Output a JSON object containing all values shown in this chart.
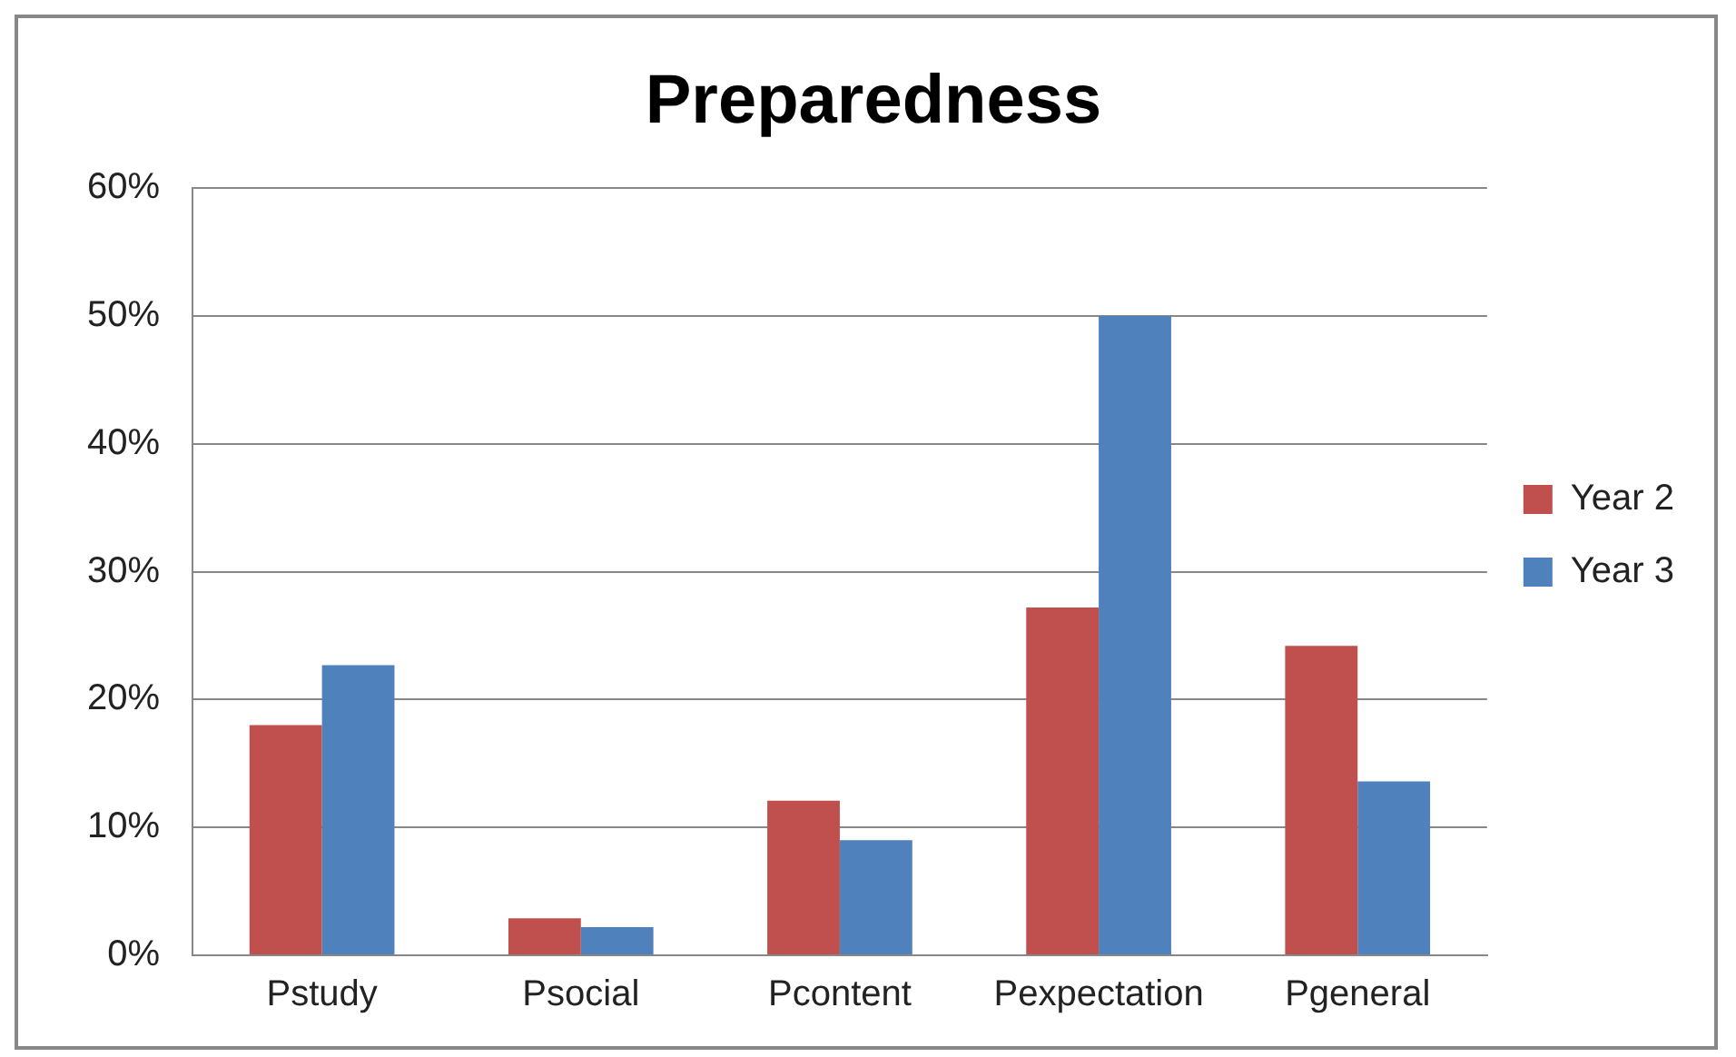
{
  "chart_data": {
    "type": "bar",
    "title": "Preparedness",
    "categories": [
      "Pstudy",
      "Psocial",
      "Pcontent",
      "Pexpectation",
      "Pgeneral"
    ],
    "series": [
      {
        "name": "Year 2",
        "color": "#c0504d",
        "values": [
          18.0,
          2.9,
          12.1,
          27.2,
          24.2
        ]
      },
      {
        "name": "Year 3",
        "color": "#4f81bd",
        "values": [
          22.7,
          2.2,
          9.0,
          50.0,
          13.6
        ]
      }
    ],
    "ylim": [
      0,
      60
    ],
    "yticks": [
      {
        "value": 0,
        "label": "0%"
      },
      {
        "value": 10,
        "label": "10%"
      },
      {
        "value": 20,
        "label": "20%"
      },
      {
        "value": 30,
        "label": "30%"
      },
      {
        "value": 40,
        "label": "40%"
      },
      {
        "value": 50,
        "label": "50%"
      },
      {
        "value": 60,
        "label": "60%"
      }
    ],
    "grid": "y",
    "legend": "right"
  }
}
